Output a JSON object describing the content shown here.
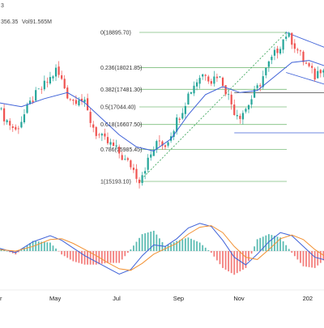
{
  "header": {
    "line1": "3",
    "line2_value": "356.35",
    "line2_vol": "Vol91.565M"
  },
  "colors": {
    "up": "#26a69a",
    "down": "#ef5350",
    "ma": "#3f62d8",
    "fib": "#7dbe7d",
    "macd": "#3f62d8",
    "signal": "#f29133",
    "trend": "#2e9e4f",
    "channel": "#3f62d8"
  },
  "chart_data": [
    {
      "type": "candlestick",
      "title": "",
      "xlabel": "",
      "ylabel": "",
      "ylim": [
        15000,
        19200
      ],
      "x_tick_labels": [
        "r",
        "May",
        "Jul",
        "Sep",
        "Nov",
        "202"
      ],
      "fib_levels": [
        {
          "label": "0(18895.70)",
          "ratio": 0,
          "value": 18895.7
        },
        {
          "label": "0.236(18021.85)",
          "ratio": 0.236,
          "value": 18021.85
        },
        {
          "label": "0.382(17481.30)",
          "ratio": 0.382,
          "value": 17481.3
        },
        {
          "label": "0.5(17044.40)",
          "ratio": 0.5,
          "value": 17044.4
        },
        {
          "label": "0.618(16607.50)",
          "ratio": 0.618,
          "value": 16607.5
        },
        {
          "label": "0.786(15985.45)",
          "ratio": 0.786,
          "value": 15985.45
        },
        {
          "label": "1(15193.10)",
          "ratio": 1,
          "value": 15193.1
        }
      ],
      "close_path": [
        [
          0,
          17000
        ],
        [
          3,
          16700
        ],
        [
          6,
          16450
        ],
        [
          9,
          16850
        ],
        [
          12,
          17250
        ],
        [
          15,
          17500
        ],
        [
          18,
          17750
        ],
        [
          20,
          17950
        ],
        [
          22,
          17700
        ],
        [
          24,
          17350
        ],
        [
          26,
          17200
        ],
        [
          28,
          17300
        ],
        [
          30,
          17100
        ],
        [
          32,
          16700
        ],
        [
          34,
          16400
        ],
        [
          36,
          16250
        ],
        [
          38,
          16150
        ],
        [
          40,
          16050
        ],
        [
          42,
          15900
        ],
        [
          44,
          15700
        ],
        [
          46,
          15600
        ],
        [
          48,
          15350
        ],
        [
          49,
          15250
        ],
        [
          50,
          15400
        ],
        [
          52,
          15700
        ],
        [
          54,
          16000
        ],
        [
          56,
          16200
        ],
        [
          58,
          16100
        ],
        [
          60,
          16400
        ],
        [
          62,
          16700
        ],
        [
          64,
          17000
        ],
        [
          66,
          17350
        ],
        [
          68,
          17600
        ],
        [
          70,
          17800
        ],
        [
          72,
          17900
        ],
        [
          74,
          17700
        ],
        [
          76,
          17850
        ],
        [
          78,
          17650
        ],
        [
          80,
          17300
        ],
        [
          82,
          16950
        ],
        [
          84,
          16850
        ],
        [
          86,
          17000
        ],
        [
          88,
          17250
        ],
        [
          90,
          17500
        ],
        [
          92,
          17800
        ],
        [
          94,
          18100
        ],
        [
          96,
          18350
        ],
        [
          98,
          18600
        ],
        [
          100,
          18850
        ],
        [
          102,
          18700
        ],
        [
          104,
          18450
        ],
        [
          106,
          18200
        ],
        [
          108,
          18000
        ],
        [
          110,
          17800
        ],
        [
          112,
          18000
        ],
        [
          114,
          18150
        ],
        [
          116,
          18250
        ]
      ],
      "ma_path": [
        [
          0,
          17150
        ],
        [
          8,
          17050
        ],
        [
          16,
          17250
        ],
        [
          24,
          17400
        ],
        [
          30,
          17150
        ],
        [
          36,
          16750
        ],
        [
          42,
          16350
        ],
        [
          48,
          16050
        ],
        [
          54,
          15950
        ],
        [
          60,
          16250
        ],
        [
          66,
          16850
        ],
        [
          72,
          17350
        ],
        [
          78,
          17550
        ],
        [
          84,
          17400
        ],
        [
          90,
          17450
        ],
        [
          96,
          17800
        ],
        [
          102,
          18150
        ],
        [
          108,
          18200
        ],
        [
          114,
          18050
        ],
        [
          116,
          18050
        ]
      ],
      "trendline": [
        [
          49,
          15193.1
        ],
        [
          100,
          18895.7
        ]
      ],
      "channel_upper": [
        [
          100,
          18895.7
        ],
        [
          116,
          18450
        ]
      ],
      "channel_lower": [
        [
          100,
          17900
        ],
        [
          116,
          17550
        ]
      ],
      "horizontal_lines": [
        17400,
        16400
      ]
    },
    {
      "type": "macd",
      "title": "",
      "series": [
        {
          "name": "",
          "values": [
            [
              0,
              20
            ],
            [
              6,
              -10
            ],
            [
              12,
              60
            ],
            [
              18,
              100
            ],
            [
              22,
              70
            ],
            [
              26,
              20
            ],
            [
              30,
              -30
            ],
            [
              34,
              -70
            ],
            [
              38,
              -110
            ],
            [
              42,
              -150
            ],
            [
              46,
              -120
            ],
            [
              50,
              -30
            ],
            [
              54,
              40
            ],
            [
              58,
              30
            ],
            [
              62,
              80
            ],
            [
              66,
              150
            ],
            [
              70,
              180
            ],
            [
              74,
              160
            ],
            [
              78,
              70
            ],
            [
              82,
              -40
            ],
            [
              86,
              -90
            ],
            [
              90,
              -20
            ],
            [
              94,
              60
            ],
            [
              98,
              120
            ],
            [
              102,
              100
            ],
            [
              106,
              30
            ],
            [
              110,
              -40
            ],
            [
              114,
              -60
            ],
            [
              116,
              -40
            ]
          ]
        },
        {
          "name": "",
          "values": [
            [
              0,
              10
            ],
            [
              6,
              0
            ],
            [
              12,
              30
            ],
            [
              18,
              75
            ],
            [
              22,
              80
            ],
            [
              26,
              50
            ],
            [
              30,
              10
            ],
            [
              34,
              -30
            ],
            [
              38,
              -75
            ],
            [
              42,
              -115
            ],
            [
              46,
              -125
            ],
            [
              50,
              -80
            ],
            [
              54,
              -20
            ],
            [
              58,
              15
            ],
            [
              62,
              50
            ],
            [
              66,
              110
            ],
            [
              70,
              155
            ],
            [
              74,
              165
            ],
            [
              78,
              120
            ],
            [
              82,
              30
            ],
            [
              86,
              -40
            ],
            [
              90,
              -55
            ],
            [
              94,
              10
            ],
            [
              98,
              80
            ],
            [
              102,
              105
            ],
            [
              106,
              75
            ],
            [
              110,
              10
            ],
            [
              114,
              -40
            ],
            [
              116,
              -45
            ]
          ]
        }
      ]
    }
  ]
}
